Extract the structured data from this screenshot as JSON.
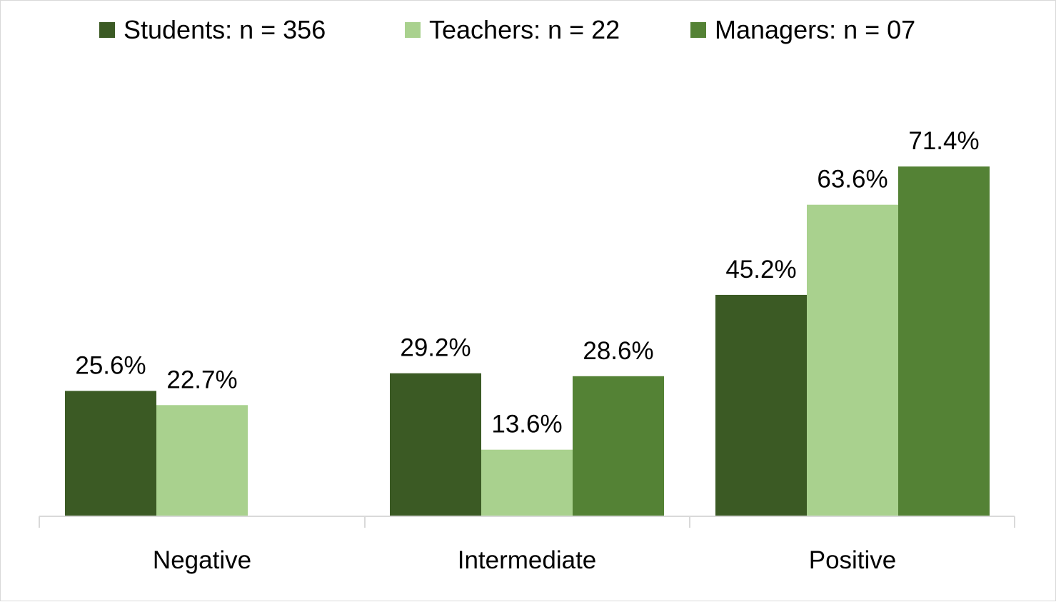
{
  "chart_data": {
    "type": "bar",
    "categories": [
      "Negative",
      "Intermediate",
      "Positive"
    ],
    "series": [
      {
        "name": "Students: n = 356",
        "color": "#3b5a24",
        "values": [
          25.6,
          29.2,
          45.2
        ],
        "labels": [
          "25.6%",
          "29.2%",
          "45.2%"
        ]
      },
      {
        "name": "Teachers: n = 22",
        "color": "#a9d18e",
        "values": [
          22.7,
          13.6,
          63.6
        ],
        "labels": [
          "22.7%",
          "13.6%",
          "63.6%"
        ]
      },
      {
        "name": "Managers: n = 07",
        "color": "#548235",
        "values": [
          null,
          28.6,
          71.4
        ],
        "labels": [
          "",
          "28.6%",
          "71.4%"
        ]
      }
    ],
    "title": "",
    "xlabel": "",
    "ylabel": "",
    "ylim": [
      0,
      100
    ],
    "grid": false,
    "legend_position": "top"
  }
}
